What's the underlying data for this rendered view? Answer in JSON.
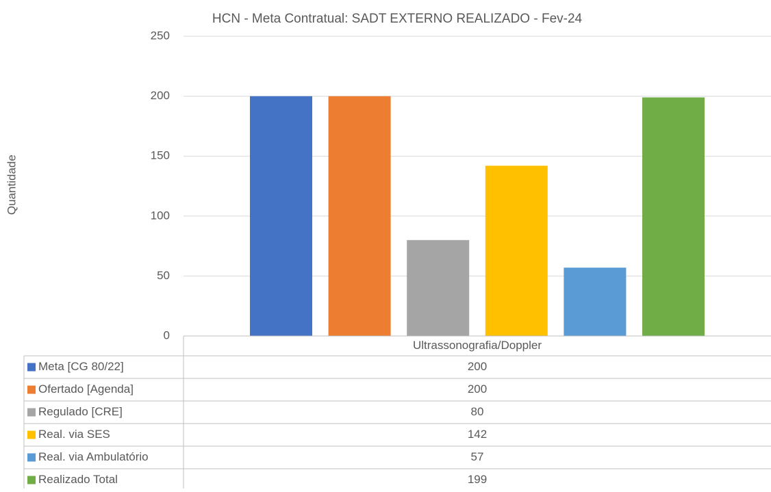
{
  "chart_data": {
    "type": "bar",
    "title": "HCN - Meta Contratual: SADT EXTERNO REALIZADO - Fev-24",
    "y_label": "Quantidade",
    "categories": [
      "Ultrassonografia/Doppler"
    ],
    "series": [
      {
        "name": "Meta [CG 80/22]",
        "color": "#4472c4",
        "values": [
          200
        ]
      },
      {
        "name": "Ofertado [Agenda]",
        "color": "#ed7d31",
        "values": [
          200
        ]
      },
      {
        "name": "Regulado [CRE]",
        "color": "#a5a5a5",
        "values": [
          80
        ]
      },
      {
        "name": "Real. via SES",
        "color": "#ffc000",
        "values": [
          142
        ]
      },
      {
        "name": "Real. via Ambulatório",
        "color": "#5b9bd5",
        "values": [
          57
        ]
      },
      {
        "name": "Realizado Total",
        "color": "#70ad47",
        "values": [
          199
        ]
      }
    ],
    "ylim": [
      0,
      250
    ],
    "yticks": [
      0,
      50,
      100,
      150,
      200,
      250
    ],
    "grid": true
  }
}
